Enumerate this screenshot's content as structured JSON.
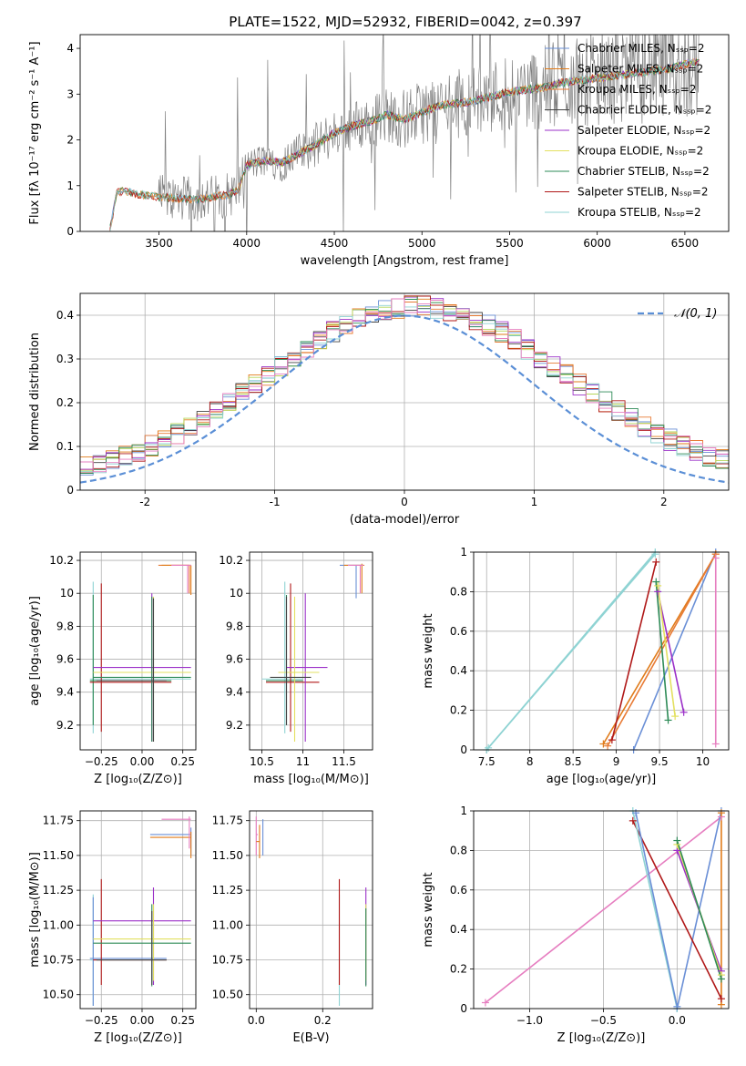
{
  "figure": {
    "title": "PLATE=1522, MJD=52932, FIBERID=0042, z=0.397"
  },
  "colors": {
    "chabrier_miles": "#6a8fd6",
    "salpeter_miles": "#e07b1a",
    "kroupa_miles": "#e87b35",
    "chabrier_elodie": "#444444",
    "salpeter_elodie": "#9b30c8",
    "kroupa_elodie": "#e3e060",
    "chabrier_stelib": "#2e8b57",
    "salpeter_stelib": "#b01818",
    "kroupa_stelib": "#8fd3d3",
    "pink": "#e67ec0",
    "olive": "#b5d65a",
    "gray": "#808080",
    "normal": "#5b8fd6"
  },
  "chart_data": [
    {
      "id": "spectrum",
      "type": "line",
      "xlabel": "wavelength [Angstrom, rest frame]",
      "ylabel": "Flux [fλ 10⁻¹⁷ erg cm⁻² s⁻¹ A⁻¹]",
      "xlim": [
        3050,
        6750
      ],
      "ylim": [
        0,
        4.3
      ],
      "xticks": [
        3500,
        4000,
        4500,
        5000,
        5500,
        6000,
        6500
      ],
      "yticks": [
        0,
        1,
        2,
        3,
        4
      ],
      "grid": false,
      "legend_position": "top-right",
      "legend": [
        "Chabrier MILES, Nₛₛₚ=2",
        "Salpeter MILES, Nₛₛₚ=2",
        "Kroupa MILES, Nₛₛₚ=2",
        "Chabrier ELODIE, Nₛₛₚ=2",
        "Salpeter ELODIE, Nₛₛₚ=2",
        "Kroupa ELODIE, Nₛₛₚ=2",
        "Chabrier STELIB, Nₛₛₚ=2",
        "Salpeter STELIB, Nₛₛₚ=2",
        "Kroupa STELIB, Nₛₛₚ=2"
      ],
      "model_continuum": {
        "x": [
          3220,
          3260,
          3300,
          3400,
          3500,
          3600,
          3700,
          3800,
          3900,
          3950,
          4000,
          4100,
          4200,
          4300,
          4400,
          4500,
          4600,
          4700,
          4800,
          4900,
          5000,
          5100,
          5200,
          5300,
          5400,
          5500,
          5600,
          5700,
          5800,
          5900,
          6000,
          6100,
          6200,
          6300,
          6400,
          6500,
          6580
        ],
        "y": [
          0.05,
          0.85,
          0.88,
          0.8,
          0.75,
          0.72,
          0.7,
          0.75,
          0.8,
          0.9,
          1.45,
          1.55,
          1.5,
          1.7,
          1.9,
          2.15,
          2.3,
          2.4,
          2.55,
          2.45,
          2.6,
          2.75,
          2.8,
          2.85,
          2.95,
          3.05,
          3.1,
          3.15,
          3.25,
          3.3,
          3.35,
          3.4,
          3.45,
          3.5,
          3.55,
          3.65,
          3.7
        ]
      }
    },
    {
      "id": "residuals",
      "type": "bar",
      "xlabel": "(data-model)/error",
      "ylabel": "Normed distribution",
      "xlim": [
        -2.5,
        2.5
      ],
      "ylim": [
        0,
        0.45
      ],
      "xticks": [
        -2,
        -1,
        0,
        1,
        2
      ],
      "yticks": [
        0.0,
        0.1,
        0.2,
        0.3,
        0.4
      ],
      "grid": true,
      "legend": [
        "𝒩(0, 1)"
      ],
      "legend_position": "top-right",
      "bin_width": 0.1
    },
    {
      "id": "age_vs_Z",
      "type": "scatter",
      "xlabel": "Z [log₁₀(Z/Z⊙)]",
      "ylabel": "age  [log₁₀(age/yr)]",
      "xlim": [
        -0.38,
        0.33
      ],
      "ylim": [
        9.05,
        10.25
      ],
      "xticks": [
        -0.25,
        0.0,
        0.25
      ],
      "xtick_labels": [
        "−0.25",
        "0.00",
        "0.25"
      ],
      "yticks": [
        9.2,
        9.4,
        9.6,
        9.8,
        10.0,
        10.2
      ],
      "grid": true
    },
    {
      "id": "age_vs_mass",
      "type": "scatter",
      "xlabel": "mass [log₁₀(M/M⊙)]",
      "xlim": [
        10.35,
        11.85
      ],
      "ylim": [
        9.05,
        10.25
      ],
      "xticks": [
        10.5,
        11.0,
        11.5
      ],
      "yticks": [
        9.2,
        9.4,
        9.6,
        9.8,
        10.0,
        10.2
      ],
      "grid": true
    },
    {
      "id": "mw_vs_age",
      "type": "line",
      "xlabel": "age  [log₁₀(age/yr)]",
      "ylabel": "mass weight",
      "xlim": [
        7.35,
        10.3
      ],
      "ylim": [
        0,
        1
      ],
      "xticks": [
        7.5,
        8.0,
        8.5,
        9.0,
        9.5,
        10.0
      ],
      "yticks": [
        0.0,
        0.2,
        0.4,
        0.6,
        0.8,
        1.0
      ],
      "grid": true,
      "series": [
        {
          "x": [
            9.2,
            10.15
          ],
          "y": [
            0.0,
            1.0
          ]
        },
        {
          "x": [
            8.85,
            10.15
          ],
          "y": [
            0.03,
            0.99
          ]
        },
        {
          "x": [
            8.9,
            10.15
          ],
          "y": [
            0.02,
            0.99
          ]
        },
        {
          "x": [
            7.5,
            9.45
          ],
          "y": [
            0.0,
            1.0
          ]
        },
        {
          "x": [
            9.48,
            9.78
          ],
          "y": [
            0.8,
            0.19
          ]
        },
        {
          "x": [
            9.48,
            9.68
          ],
          "y": [
            0.83,
            0.17
          ]
        },
        {
          "x": [
            9.46,
            9.6
          ],
          "y": [
            0.85,
            0.15
          ]
        },
        {
          "x": [
            8.95,
            9.46
          ],
          "y": [
            0.05,
            0.95
          ]
        },
        {
          "x": [
            7.52,
            9.45
          ],
          "y": [
            0.01,
            0.99
          ]
        },
        {
          "x": [
            10.15,
            10.15
          ],
          "y": [
            0.03,
            0.97
          ]
        }
      ]
    },
    {
      "id": "mass_vs_Z",
      "type": "scatter",
      "xlabel": "Z [log₁₀(Z/Z⊙)]",
      "ylabel": "mass [log₁₀(M/M⊙)]",
      "xlim": [
        -0.38,
        0.33
      ],
      "ylim": [
        10.4,
        11.82
      ],
      "xticks": [
        -0.25,
        0.0,
        0.25
      ],
      "xtick_labels": [
        "−0.25",
        "0.00",
        "0.25"
      ],
      "yticks": [
        10.5,
        10.75,
        11.0,
        11.25,
        11.5,
        11.75
      ],
      "ytick_labels": [
        "10.50",
        "10.75",
        "11.00",
        "11.25",
        "11.50",
        "11.75"
      ],
      "grid": true
    },
    {
      "id": "mass_vs_ebv",
      "type": "scatter",
      "xlabel": "E(B-V)",
      "xlim": [
        -0.02,
        0.35
      ],
      "ylim": [
        10.4,
        11.82
      ],
      "xticks": [
        0.0,
        0.2
      ],
      "xtick_labels": [
        "0.0",
        "0.2"
      ],
      "yticks": [
        10.5,
        10.75,
        11.0,
        11.25,
        11.5,
        11.75
      ],
      "ytick_labels": [
        "10.50",
        "10.75",
        "11.00",
        "11.25",
        "11.50",
        "11.75"
      ],
      "grid": true
    },
    {
      "id": "mw_vs_Z",
      "type": "line",
      "xlabel": "Z [log₁₀(Z/Z⊙)]",
      "ylabel": "mass weight",
      "xlim": [
        -1.38,
        0.35
      ],
      "ylim": [
        0,
        1
      ],
      "xticks": [
        -1.0,
        -0.5,
        0.0
      ],
      "xtick_labels": [
        "−1.0",
        "−0.5",
        "0.0"
      ],
      "yticks": [
        0.0,
        0.2,
        0.4,
        0.6,
        0.8,
        1.0
      ],
      "grid": true,
      "series": [
        {
          "x": [
            -1.3,
            0.3
          ],
          "y": [
            0.03,
            0.97
          ]
        },
        {
          "x": [
            0.0,
            0.3
          ],
          "y": [
            0.0,
            1.0
          ]
        },
        {
          "x": [
            0.3,
            0.3
          ],
          "y": [
            0.02,
            0.99
          ]
        },
        {
          "x": [
            -0.3,
            0.3
          ],
          "y": [
            0.95,
            0.05
          ]
        },
        {
          "x": [
            0.0,
            0.3
          ],
          "y": [
            0.8,
            0.19
          ]
        },
        {
          "x": [
            0.0,
            0.3
          ],
          "y": [
            0.83,
            0.17
          ]
        },
        {
          "x": [
            0.0,
            0.3
          ],
          "y": [
            0.85,
            0.15
          ]
        },
        {
          "x": [
            -0.3,
            0.0
          ],
          "y": [
            1.0,
            0.0
          ]
        },
        {
          "x": [
            -0.28,
            0.0
          ],
          "y": [
            0.99,
            0.01
          ]
        }
      ]
    }
  ]
}
